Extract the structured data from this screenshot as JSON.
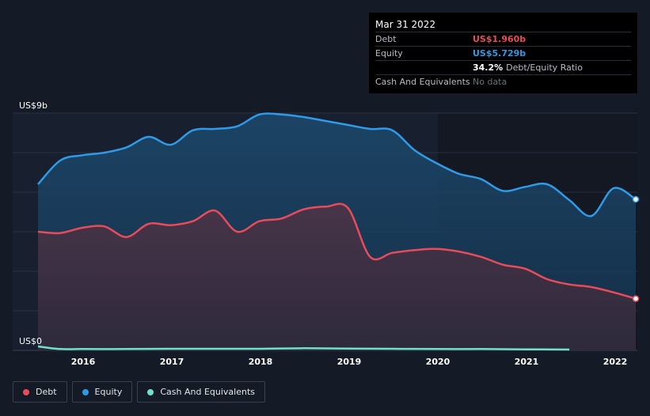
{
  "tooltip": {
    "date": "Mar 31 2022",
    "rows": [
      {
        "label": "Debt",
        "value": "US$1.960b"
      },
      {
        "label": "Equity",
        "value": "US$5.729b"
      },
      {
        "label": "",
        "ratio_value": "34.2%",
        "ratio_label": "Debt/Equity Ratio"
      },
      {
        "label": "Cash And Equivalents",
        "value": "No data"
      }
    ]
  },
  "legend": [
    {
      "label": "Debt",
      "color": "#e84c5a"
    },
    {
      "label": "Equity",
      "color": "#2f9be8"
    },
    {
      "label": "Cash And Equivalents",
      "color": "#6fe0cc"
    }
  ],
  "chart_data": {
    "type": "area",
    "y_top_label": "US$9b",
    "y_bottom_label": "US$0",
    "ylim": [
      0,
      9
    ],
    "xlim": [
      2015.5,
      2022.25
    ],
    "x_ticks": [
      "2016",
      "2017",
      "2018",
      "2019",
      "2020",
      "2021",
      "2022"
    ],
    "grid": true,
    "series": [
      {
        "name": "Equity",
        "color": "#2f9be8",
        "x": [
          2015.5,
          2015.75,
          2016.0,
          2016.25,
          2016.5,
          2016.75,
          2017.0,
          2017.25,
          2017.5,
          2017.75,
          2018.0,
          2018.25,
          2018.5,
          2018.75,
          2019.0,
          2019.25,
          2019.5,
          2019.75,
          2020.0,
          2020.25,
          2020.5,
          2020.75,
          2021.0,
          2021.25,
          2021.5,
          2021.75,
          2022.0,
          2022.25
        ],
        "values": [
          6.3,
          7.2,
          7.4,
          7.5,
          7.7,
          8.1,
          7.8,
          8.35,
          8.4,
          8.5,
          8.95,
          8.95,
          8.85,
          8.7,
          8.55,
          8.4,
          8.35,
          7.6,
          7.1,
          6.7,
          6.5,
          6.05,
          6.2,
          6.3,
          5.7,
          5.1,
          6.15,
          5.73
        ]
      },
      {
        "name": "Debt",
        "color": "#e84c5a",
        "x": [
          2015.5,
          2015.75,
          2016.0,
          2016.25,
          2016.5,
          2016.75,
          2017.0,
          2017.25,
          2017.5,
          2017.75,
          2018.0,
          2018.25,
          2018.5,
          2018.75,
          2019.0,
          2019.25,
          2019.5,
          2019.75,
          2020.0,
          2020.25,
          2020.5,
          2020.75,
          2021.0,
          2021.25,
          2021.5,
          2021.75,
          2022.0,
          2022.25
        ],
        "values": [
          4.5,
          4.45,
          4.65,
          4.7,
          4.3,
          4.8,
          4.75,
          4.9,
          5.3,
          4.5,
          4.9,
          5.0,
          5.35,
          5.45,
          5.4,
          3.55,
          3.7,
          3.8,
          3.85,
          3.75,
          3.55,
          3.25,
          3.1,
          2.7,
          2.5,
          2.4,
          2.2,
          1.96
        ]
      },
      {
        "name": "Cash And Equivalents",
        "color": "#6fe0cc",
        "x": [
          2015.5,
          2015.75,
          2016.0,
          2016.5,
          2017.0,
          2017.5,
          2018.0,
          2018.5,
          2019.0,
          2019.5,
          2020.0,
          2020.5,
          2021.0,
          2021.5
        ],
        "values": [
          0.15,
          0.05,
          0.05,
          0.05,
          0.06,
          0.06,
          0.06,
          0.08,
          0.07,
          0.06,
          0.05,
          0.05,
          0.04,
          0.03
        ]
      }
    ]
  }
}
